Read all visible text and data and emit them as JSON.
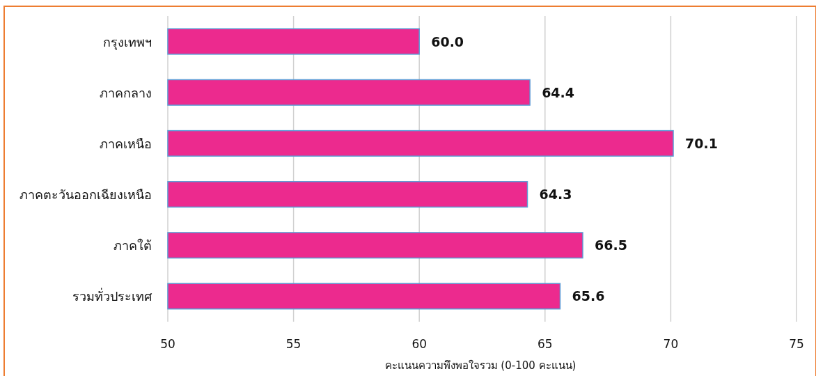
{
  "chart_data": {
    "type": "bar",
    "orientation": "horizontal",
    "xlabel": "คะแนนความพึงพอใจรวม (0-100 คะแนน)",
    "categories": [
      "กรุงเทพฯ",
      "ภาคกลาง",
      "ภาคเหนือ",
      "ภาคตะวันออกเฉียงเหนือ",
      "ภาคใต้",
      "รวมทั่วประเทศ"
    ],
    "values": [
      60.0,
      64.4,
      70.1,
      64.3,
      66.5,
      65.6
    ],
    "value_labels": [
      "60.0",
      "64.4",
      "70.1",
      "64.3",
      "66.5",
      "65.6"
    ],
    "color": "#ec2a8e",
    "xlim": [
      50,
      75
    ],
    "xticks": [
      50,
      55,
      60,
      65,
      70,
      75
    ],
    "grid": "x"
  }
}
